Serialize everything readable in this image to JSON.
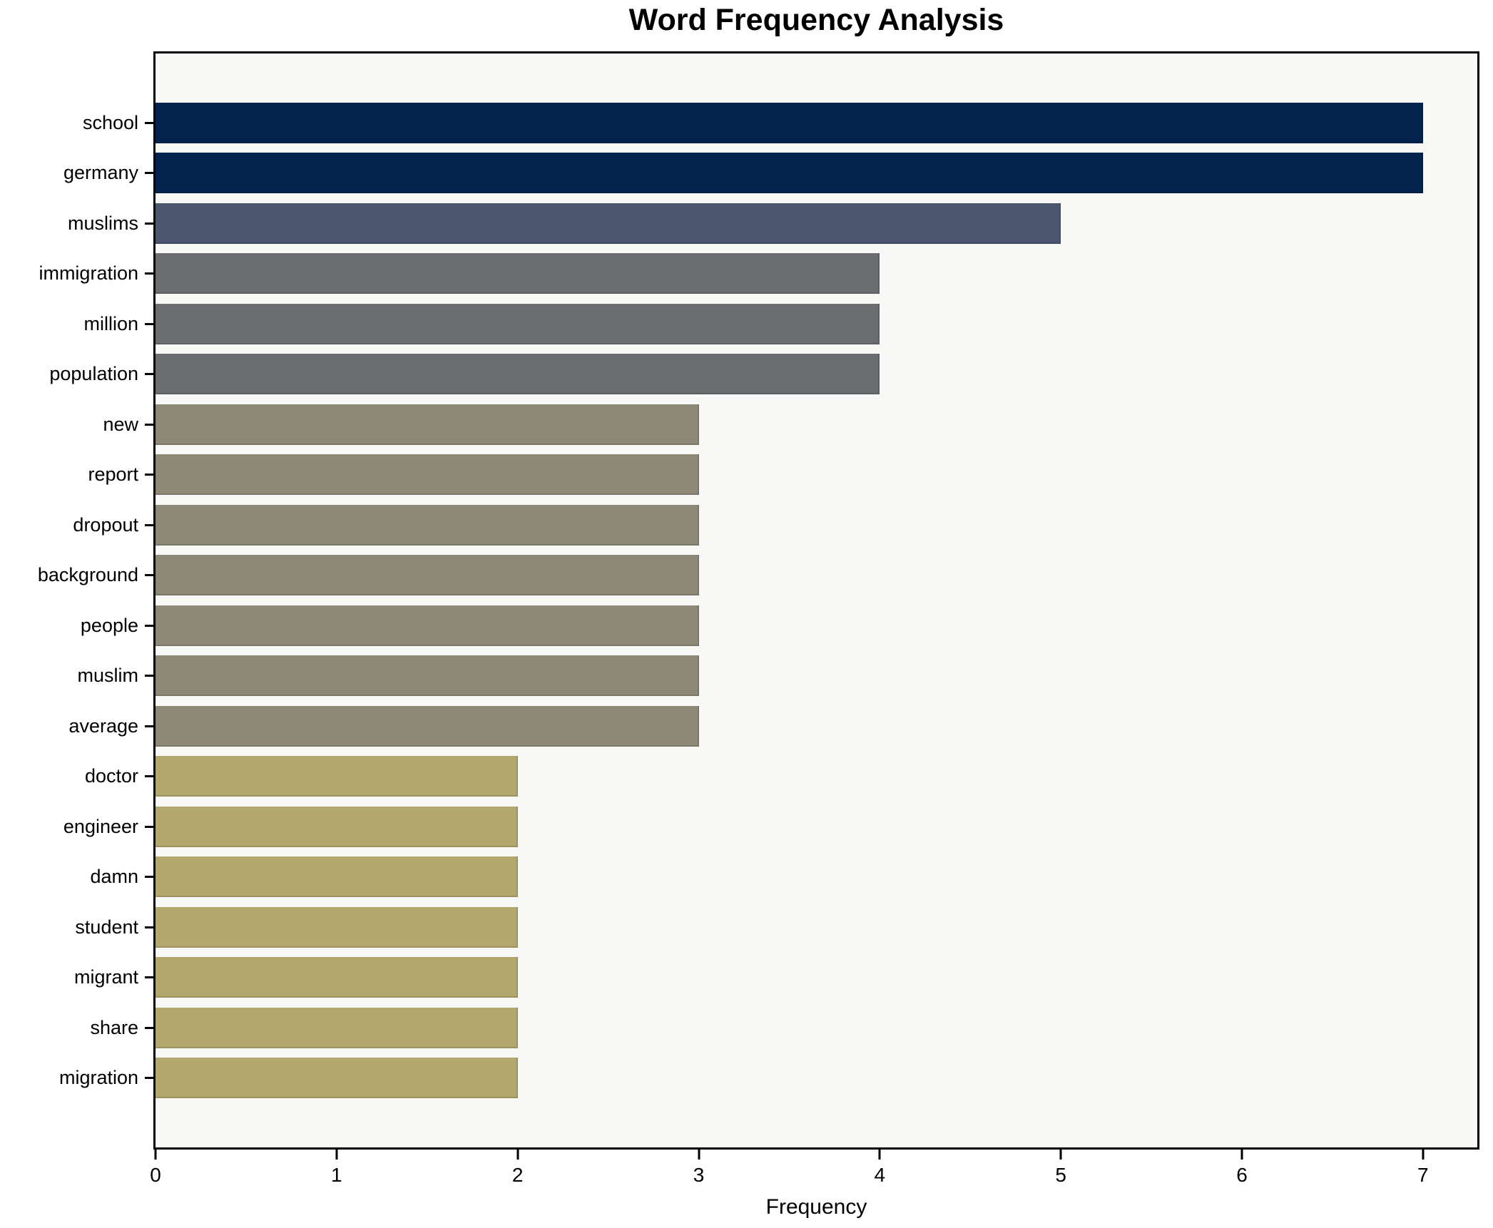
{
  "chart": {
    "title": "Word Frequency Analysis",
    "xlabel": "Frequency"
  },
  "chart_data": {
    "type": "bar",
    "orientation": "horizontal",
    "title": "Word Frequency Analysis",
    "xlabel": "Frequency",
    "ylabel": "",
    "grid": false,
    "legend_position": "none",
    "xlim": [
      0,
      7.3
    ],
    "xticks": [
      0,
      1,
      2,
      3,
      4,
      5,
      6,
      7
    ],
    "categories": [
      "school",
      "germany",
      "muslims",
      "immigration",
      "million",
      "population",
      "new",
      "report",
      "dropout",
      "background",
      "people",
      "muslim",
      "average",
      "doctor",
      "engineer",
      "damn",
      "student",
      "migrant",
      "share",
      "migration"
    ],
    "values": [
      7,
      7,
      5,
      4,
      4,
      4,
      3,
      3,
      3,
      3,
      3,
      3,
      3,
      2,
      2,
      2,
      2,
      2,
      2,
      2
    ],
    "bar_colors": [
      "#02234d",
      "#02234d",
      "#4d566f",
      "#6b6d71",
      "#6b6d71",
      "#6b6d71",
      "#8e8977",
      "#8e8977",
      "#8e8977",
      "#8e8977",
      "#8e8977",
      "#8e8977",
      "#8e8977",
      "#b2a76d",
      "#b2a76d",
      "#b2a76d",
      "#b2a76d",
      "#b2a76d",
      "#b2a76d",
      "#b2a76d"
    ],
    "colors_legend": {
      "freq_7": "#02234d",
      "freq_5": "#4d566f",
      "freq_4": "#6b6d71",
      "freq_3": "#8e8977",
      "freq_2": "#b2a76d"
    },
    "plot_background": "#f8f8f6",
    "spine_color": "#000000"
  }
}
